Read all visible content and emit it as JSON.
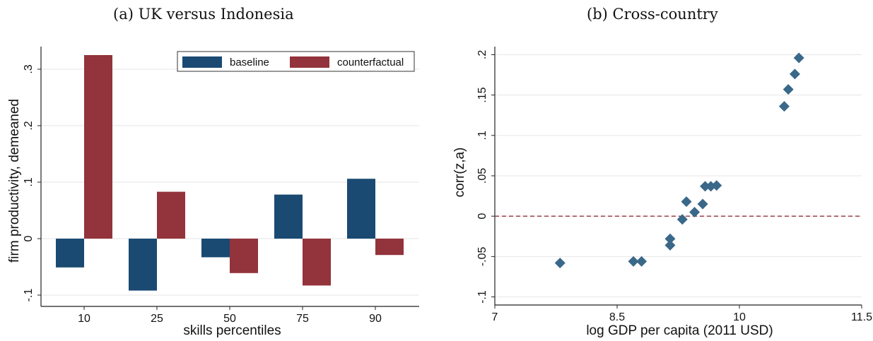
{
  "captions": {
    "a": "(a) UK versus Indonesia",
    "b": "(b) Cross-country"
  },
  "chart_data": [
    {
      "type": "bar",
      "title": "(a) UK versus Indonesia",
      "categories": [
        "10",
        "25",
        "50",
        "75",
        "90"
      ],
      "series": [
        {
          "name": "baseline",
          "color": "#1a4a72",
          "values": [
            -0.051,
            -0.092,
            -0.033,
            0.078,
            0.106
          ]
        },
        {
          "name": "counterfactual",
          "color": "#93333b",
          "values": [
            0.325,
            0.083,
            -0.061,
            -0.083,
            -0.029
          ]
        }
      ],
      "xlabel": "skills percentiles",
      "ylabel": "firm productivity, demeaned",
      "ylim": [
        -0.12,
        0.34
      ],
      "yticks": [
        -0.1,
        0,
        0.1,
        0.2,
        0.3
      ],
      "ytick_labels": [
        "-.1",
        "0",
        ".1",
        ".2",
        ".3"
      ],
      "grid": true,
      "legend": "top-right"
    },
    {
      "type": "scatter",
      "title": "(b) Cross-country",
      "series": [
        {
          "color": "#3a6889",
          "x": [
            7.8,
            8.7,
            8.8,
            9.15,
            9.15,
            9.3,
            9.35,
            9.45,
            9.55,
            9.58,
            9.65,
            9.72,
            10.55,
            10.6,
            10.68,
            10.73
          ],
          "y": [
            -0.058,
            -0.056,
            -0.056,
            -0.028,
            -0.036,
            -0.004,
            0.018,
            0.005,
            0.015,
            0.037,
            0.037,
            0.038,
            0.136,
            0.157,
            0.176,
            0.196
          ]
        }
      ],
      "xlabel": "log GDP per capita (2011 USD)",
      "ylabel": "corr(z,a)",
      "xlim": [
        7,
        11.5
      ],
      "ylim": [
        -0.11,
        0.21
      ],
      "xticks": [
        7,
        8.5,
        10,
        11.5
      ],
      "xtick_labels": [
        "7",
        "8.5",
        "10",
        "11.5"
      ],
      "yticks": [
        -0.1,
        -0.05,
        0,
        0.05,
        0.1,
        0.15,
        0.2
      ],
      "ytick_labels": [
        "-.1",
        "-.05",
        "0",
        ".05",
        ".1",
        ".15",
        ".2"
      ],
      "reference_line": {
        "y": 0,
        "style": "dashed",
        "color": "#93333b"
      },
      "grid": true
    }
  ]
}
